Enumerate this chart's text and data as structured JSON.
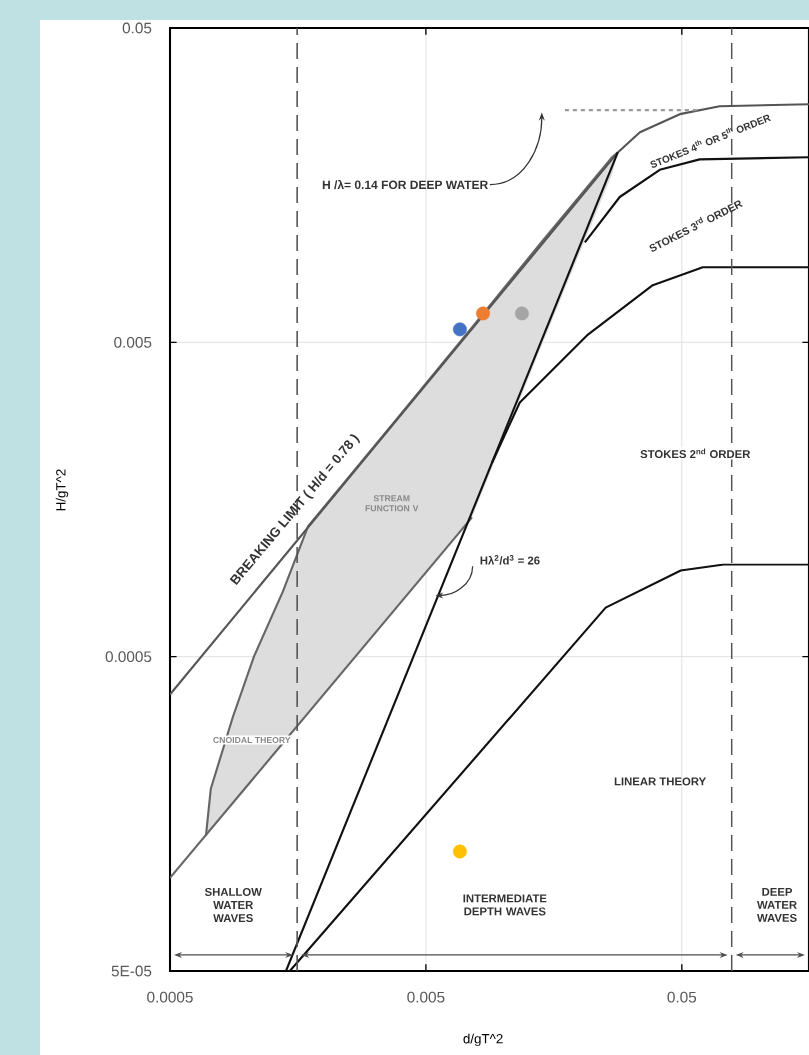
{
  "chart_data": {
    "type": "scatter",
    "xlabel": "d/gT^2",
    "ylabel": "H/gT^2",
    "log": "xy",
    "grid": true,
    "xlim": [
      0.0005,
      0.157
    ],
    "ylim": [
      5e-05,
      0.05
    ],
    "xticks": [
      0.0005,
      0.005,
      0.05
    ],
    "yticks": [
      {
        "value": 5e-05,
        "label": "5E-05"
      },
      0.0005,
      0.005,
      0.05
    ],
    "series": [
      {
        "type": "line",
        "marker": "none",
        "color": "#666666",
        "x": [
          0.000691,
          0.000722,
          0.000881,
          0.001064,
          0.00138,
          0.00173,
          0.00395,
          0.00757,
          0.01393,
          0.0267,
          0.0281
        ],
        "values": [
          0.0001346,
          0.0001901,
          0.000322,
          0.0005,
          0.000805,
          0.001297,
          0.00293,
          0.00558,
          0.01026,
          0.0194,
          0.0201
        ],
        "upper": [
          0.0001346,
          0.0001901,
          0.000322,
          0.0005,
          0.000805,
          0.001297,
          0.00293,
          0.00558,
          0.01026,
          0.0194,
          0.0201
        ],
        "lower": [
          0.0001346,
          0.0001416,
          0.0001714,
          0.000206,
          0.000266,
          0.000332,
          0.000743,
          0.001387,
          0.00472,
          0.01714,
          0.0201
        ]
      },
      {
        "type": "line",
        "marker": "none",
        "color": "#555555",
        "x": [
          0.0005,
          0.0281,
          0.0343,
          0.0491,
          0.0703,
          0.157
        ],
        "values": [
          0.000379,
          0.0201,
          0.0233,
          0.0266,
          0.0282,
          0.0286
        ]
      },
      {
        "type": "line",
        "marker": "none",
        "color": "#666666",
        "x": [
          0.0005,
          0.00757
        ],
        "values": [
          9.89e-05,
          0.001387
        ]
      },
      {
        "type": "line",
        "marker": "none",
        "color": "#111111",
        "x": [
          0.00142,
          0.0281
        ],
        "values": [
          5e-05,
          0.0201
        ]
      },
      {
        "type": "line",
        "marker": "none",
        "color": "#111111",
        "x": [
          0.00906,
          0.01164,
          0.0213,
          0.0385,
          0.0604,
          0.157
        ],
        "values": [
          0.00207,
          0.00322,
          0.00526,
          0.0076,
          0.00867,
          0.00867
        ]
      },
      {
        "type": "line",
        "marker": "none",
        "color": "#111111",
        "x": [
          0.0209,
          0.0286,
          0.041,
          0.0587,
          0.157
        ],
        "values": [
          0.0104,
          0.0145,
          0.0177,
          0.0191,
          0.0194
        ]
      },
      {
        "type": "line",
        "marker": "none",
        "color": "#111111",
        "x": [
          0.00147,
          0.0252,
          0.0495,
          0.0729,
          0.157
        ],
        "values": [
          5e-05,
          0.000716,
          0.00094,
          0.000982,
          0.000982
        ]
      },
      {
        "type": "line",
        "marker": "none",
        "line_style": "dashed",
        "color": "#999999",
        "x": [
          0.01746,
          0.0587
        ],
        "values": [
          0.0274,
          0.0274
        ]
      },
      {
        "marker": "circle",
        "x": [
          0.00679,
          0.00836,
          0.01186,
          0.00679
        ],
        "values": [
          0.0055,
          0.00618,
          0.00618,
          0.00012
        ],
        "colors": [
          "#4472c4",
          "#ed7d31",
          "#a5a5a5",
          "#ffc000"
        ]
      }
    ],
    "ref_lines": [
      {
        "axis": "x",
        "value": 0.00157,
        "color": "#555555",
        "line_style": "dashed"
      },
      {
        "axis": "x",
        "value": 0.0783,
        "color": "#555555",
        "line_style": "dashed"
      }
    ],
    "annotations": [
      "H /λ= 0.14 FOR DEEP WATER",
      "STOKES 4$^{th}$ OR 5$^{th}$ ORDER",
      "STOKES 3$^{rd}$ ORDER",
      "STOKES 2$^{nd}$ ORDER",
      "BREAKING LIMIT ( H/d = 0.78 )",
      "STREAM FUNCTION V",
      "Hλ$^{2}$/d$^{3}$ = 26",
      "CNOIDAL THEORY",
      "LINEAR THEORY",
      "SHALLOW WATER WAVES",
      "INTERMEDIATE DEPTH WAVES",
      "DEEP WATER WAVES"
    ]
  }
}
